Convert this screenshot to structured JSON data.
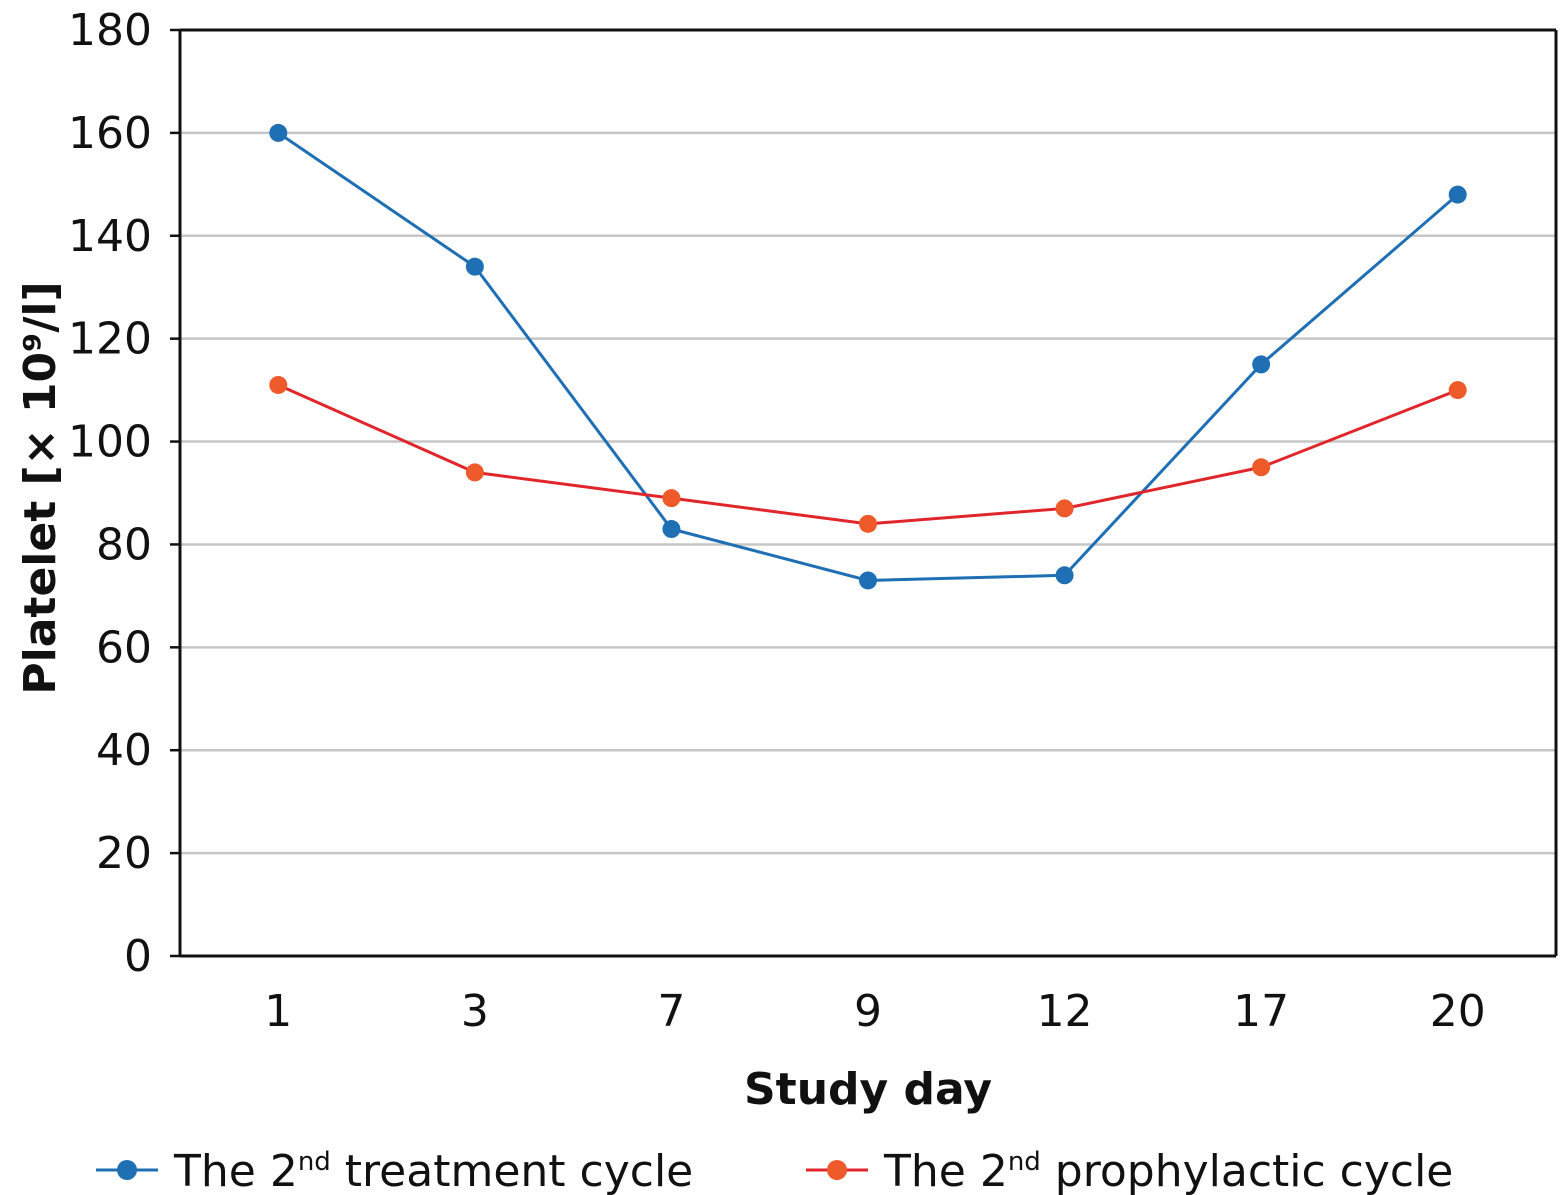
{
  "chart_data": {
    "type": "line",
    "xlabel": "Study day",
    "ylabel": "Platelet [× 10⁹/l]",
    "categories": [
      "1",
      "3",
      "7",
      "9",
      "12",
      "17",
      "20"
    ],
    "ylim": [
      0,
      180
    ],
    "yticks": [
      0,
      20,
      40,
      60,
      80,
      100,
      120,
      140,
      160,
      180
    ],
    "grid": "horizontal",
    "legend_position": "bottom",
    "series": [
      {
        "name_prefix": "The 2",
        "name_sup": "nd",
        "name_suffix": " treatment cycle",
        "line_color": "#1f6fb5",
        "marker_color": "#1f6fb5",
        "values": [
          160,
          134,
          83,
          73,
          74,
          115,
          148
        ]
      },
      {
        "name_prefix": "The 2",
        "name_sup": "nd",
        "name_suffix": " prophylactic cycle",
        "line_color": "#e0262b",
        "marker_color": "#ee5a2a",
        "values": [
          111,
          94,
          89,
          84,
          87,
          95,
          110
        ]
      }
    ]
  }
}
